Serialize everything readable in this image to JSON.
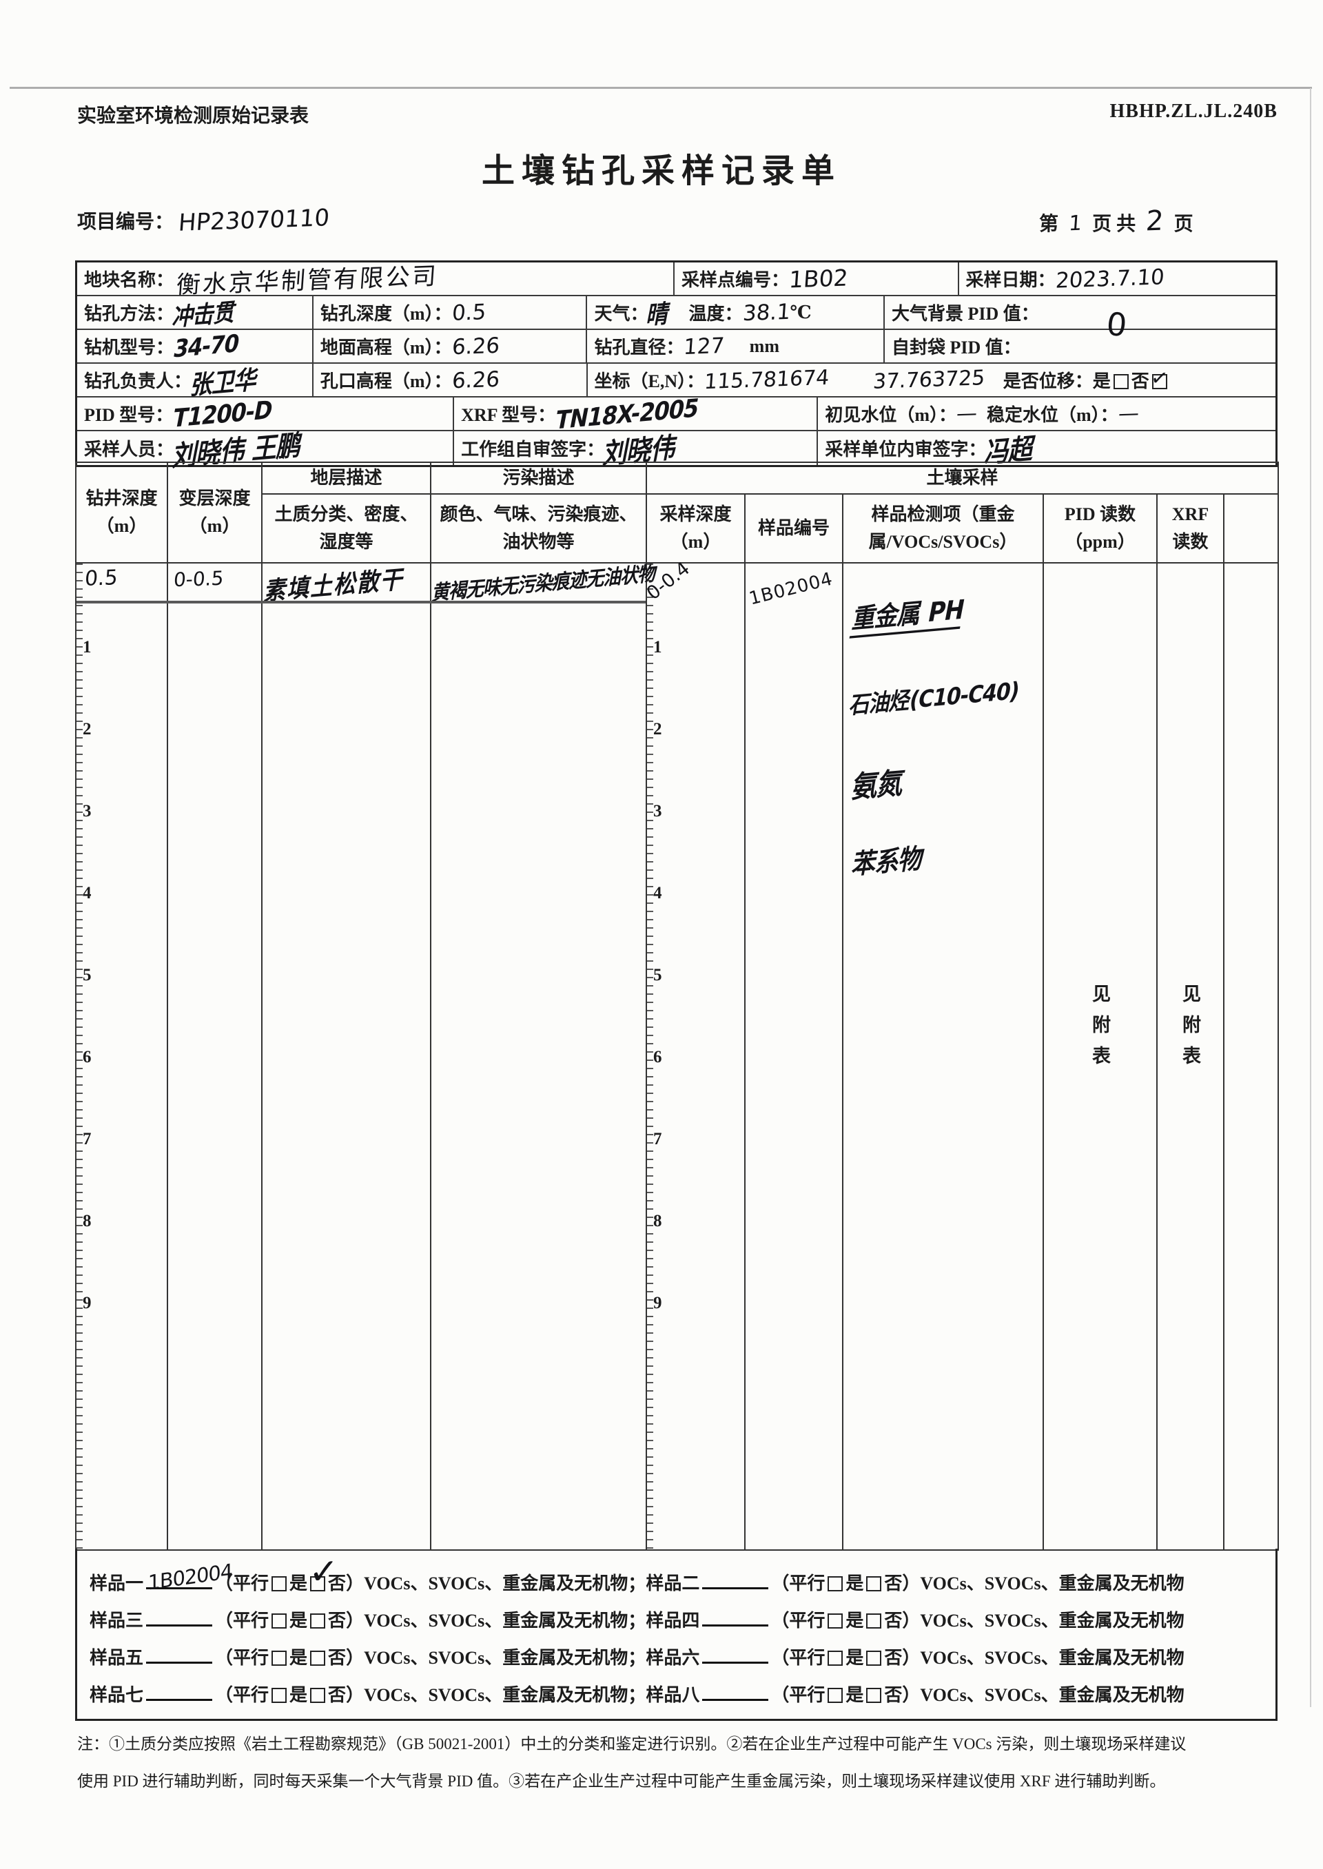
{
  "page": {
    "doc_label": "实验室环境检测原始记录表",
    "doc_code": "HBHP.ZL.JL.240B",
    "title": "土壤钻孔采样记录单",
    "project_label": "项目编号：",
    "project_no": "HP23070110",
    "page_prefix": "第",
    "page_no": "1",
    "page_mid": "页 共",
    "page_total": "2",
    "page_suffix": "页"
  },
  "info": {
    "site_name_label": "地块名称：",
    "site_name": "衡水京华制管有限公司",
    "point_label": "采样点编号：",
    "point_no": "1B02",
    "date_label": "采样日期：",
    "date": "2023.7.10",
    "method_label": "钻孔方法：",
    "method": "冲击贯",
    "depth_label": "钻孔深度（m）：",
    "depth": "0.5",
    "weather_label": "天气：",
    "weather": "晴",
    "temp_label": "温度：",
    "temp": "38.1",
    "temp_unit": "℃",
    "atm_pid_label": "大气背景 PID 值：",
    "atm_pid": "0",
    "rig_label": "钻机型号：",
    "rig": "34-70",
    "ground_elev_label": "地面高程（m）：",
    "ground_elev": "6.26",
    "diameter_label": "钻孔直径：",
    "diameter": "127",
    "diameter_unit": "mm",
    "bag_pid_label": "自封袋 PID 值：",
    "lead_label": "钻孔负责人：",
    "lead": "张卫华",
    "hole_elev_label": "孔口高程（m）：",
    "hole_elev": "6.26",
    "coord_label": "坐标（E,N）：",
    "coord_e": "115.781674",
    "coord_n": "37.763725",
    "disp_label": "是否位移：",
    "disp_yes": "是",
    "disp_no": "否",
    "pid_model_label": "PID 型号：",
    "pid_model": "T1200-D",
    "xrf_model_label": "XRF 型号：",
    "xrf_model": "TN18X-2005",
    "first_water_label": "初见水位（m）：",
    "first_water": "—",
    "stable_water_label": "稳定水位（m）：",
    "stable_water": "—",
    "samplers_label": "采样人员：",
    "samplers": "刘晓伟  王鹏",
    "group_sign_label": "工作组自审签字：",
    "group_sign": "刘晓伟",
    "internal_sign_label": "采样单位内审签字：",
    "internal_sign": "冯超"
  },
  "grid": {
    "h_drill_depth": "钻井深度（m）",
    "h_layer_depth": "变层深度（m）",
    "h_stratum": "地层描述",
    "h_stratum_detail": "土质分类、密度、湿度等",
    "h_pollution": "污染描述",
    "h_pollution_detail": "颜色、气味、污染痕迹、油状物等",
    "h_soil_sampling": "土壤采样",
    "h_sample_depth": "采样深度（m）",
    "h_sample_no": "样品编号",
    "h_test_items": "样品检测项（重金属/VOCs/SVOCs）",
    "h_pid": "PID 读数（ppm）",
    "h_xrf": "XRF 读数",
    "depth_scale": [
      "1",
      "2",
      "3",
      "4",
      "5",
      "6",
      "7",
      "8",
      "9"
    ],
    "row": {
      "drill_depth": "0.5",
      "layer_depth": "0-0.5",
      "soil_type": "素填土松散干",
      "pollution": "黄褐无味无污染痕迹无油状物",
      "sample_depth": "0-0.4",
      "sample_no": "1B02004",
      "test_items": [
        "重金属 PH",
        "石油烃(C10-C40)",
        "氨氮",
        "苯系物"
      ],
      "pid_reading": "见附表",
      "xrf_reading": "见附表"
    }
  },
  "samples": {
    "t": {
      "open": "（平行",
      "yes": "是",
      "no": "否",
      "close": "）",
      "tests": "VOCs、SVOCs、重金属及无机物",
      "sep": "；"
    },
    "rows": [
      {
        "label": "样品一",
        "value": "1B02004"
      },
      {
        "label": "样品二",
        "value": ""
      },
      {
        "label": "样品三",
        "value": ""
      },
      {
        "label": "样品四",
        "value": ""
      },
      {
        "label": "样品五",
        "value": ""
      },
      {
        "label": "样品六",
        "value": ""
      },
      {
        "label": "样品七",
        "value": ""
      },
      {
        "label": "样品八",
        "value": ""
      }
    ]
  },
  "notes": {
    "line1": "注：①土质分类应按照《岩土工程勘察规范》（GB 50021-2001）中土的分类和鉴定进行识别。②若在企业生产过程中可能产生 VOCs 污染，则土壤现场采样建议",
    "line2": "使用 PID 进行辅助判断，同时每天采集一个大气背景 PID 值。③若在产企业生产过程中可能产生重金属污染，则土壤现场采样建议使用 XRF 进行辅助判断。"
  }
}
